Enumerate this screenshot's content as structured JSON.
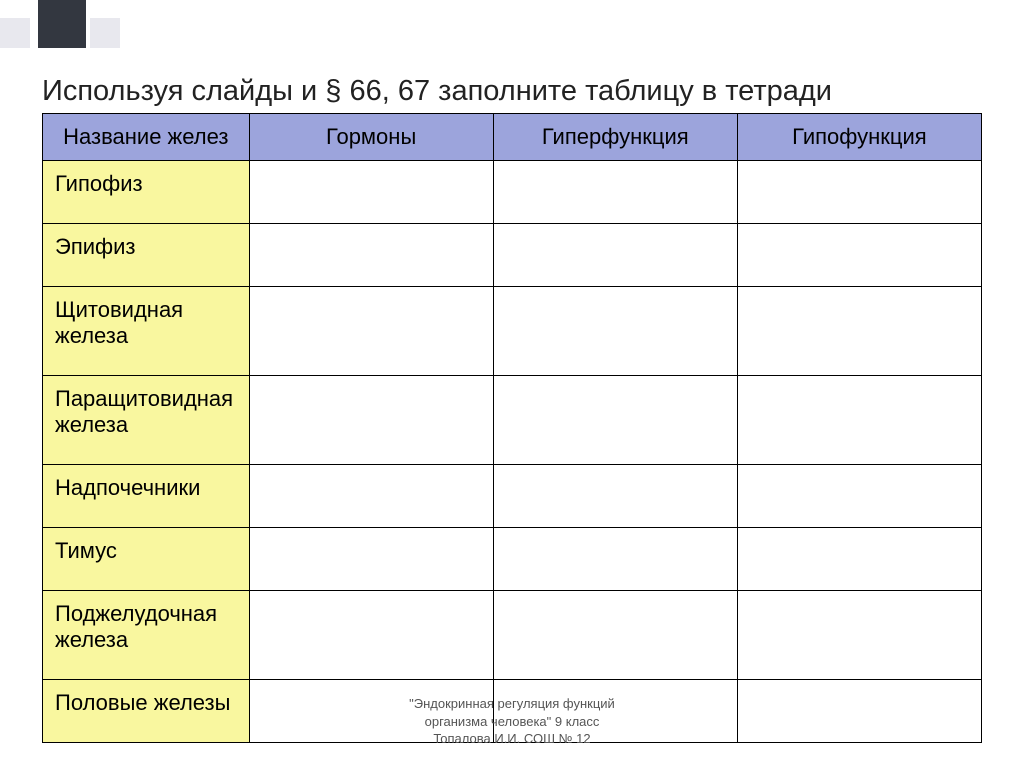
{
  "title": "Используя слайды и § 66, 67 заполните таблицу в тетради",
  "table": {
    "header_bg": "#9ca4dc",
    "rowlabel_bg": "#f9f79f",
    "columns": [
      "Название желез",
      "Гормоны",
      "Гиперфункция",
      "Гипофункция"
    ],
    "col_widths_pct": [
      22,
      26,
      26,
      26
    ],
    "rows": [
      {
        "label": "Гипофиз",
        "cells": [
          "",
          "",
          ""
        ]
      },
      {
        "label": "Эпифиз",
        "cells": [
          "",
          "",
          ""
        ]
      },
      {
        "label": "Щитовидная железа",
        "cells": [
          "",
          "",
          ""
        ]
      },
      {
        "label": "Паращитовидная железа",
        "cells": [
          "",
          "",
          ""
        ]
      },
      {
        "label": "Надпочечники",
        "cells": [
          "",
          "",
          ""
        ]
      },
      {
        "label": "Тимус",
        "cells": [
          "",
          "",
          ""
        ]
      },
      {
        "label": "Поджелудочная железа",
        "cells": [
          "",
          "",
          ""
        ]
      },
      {
        "label": "Половые железы",
        "cells": [
          "",
          "",
          ""
        ]
      }
    ]
  },
  "footer": {
    "line1": "\"Эндокринная регуляция функций",
    "line2": "организма человека\"   9 класс",
    "line3": "Топалова И.И. СОШ № 12"
  },
  "decorations": {
    "box1_color": "#e8e8ee",
    "box2_color": "#333740",
    "box3_color": "#e8e8ee"
  }
}
